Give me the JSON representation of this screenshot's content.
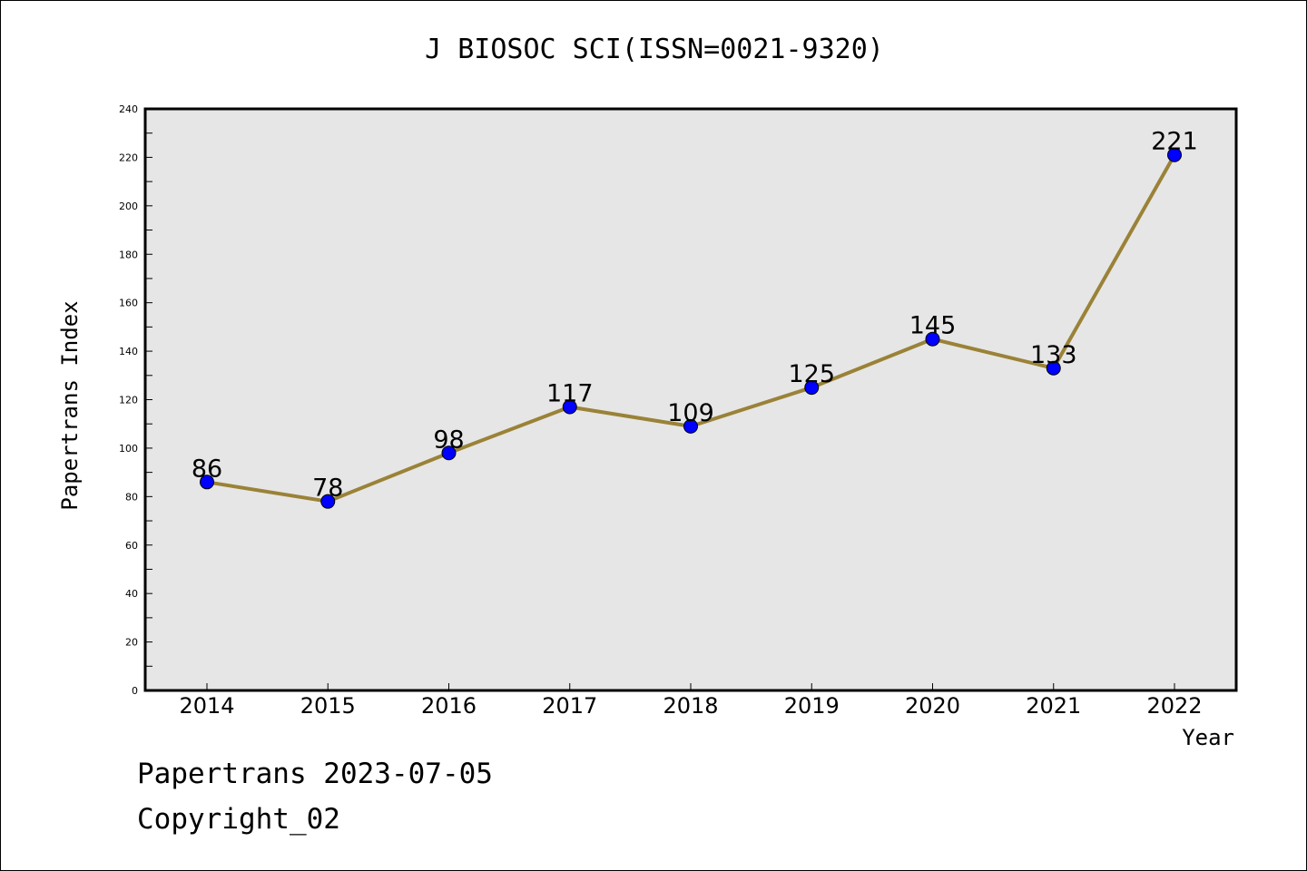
{
  "chart_data": {
    "type": "line",
    "title": "J BIOSOC SCI(ISSN=0021-9320)",
    "xlabel": "Year",
    "ylabel": "Papertrans Index",
    "categories": [
      "2014",
      "2015",
      "2016",
      "2017",
      "2018",
      "2019",
      "2020",
      "2021",
      "2022"
    ],
    "series": [
      {
        "values": [
          86,
          78,
          98,
          117,
          109,
          125,
          145,
          133,
          221
        ]
      }
    ],
    "data_labels": [
      "86",
      "78",
      "98",
      "117",
      "109",
      "125",
      "145",
      "133",
      "221"
    ],
    "ylim": [
      0,
      240
    ],
    "yticks": [
      "0",
      "20",
      "40",
      "60",
      "80",
      "100",
      "120",
      "140",
      "160",
      "180",
      "200",
      "220",
      "240"
    ],
    "grid": false,
    "legend": "none",
    "colors": {
      "line": "#9a8237",
      "marker": "#0000ff",
      "plot_background": "#e6e6e6"
    }
  },
  "footer": {
    "line1": "Papertrans 2023-07-05",
    "line2": "Copyright_02"
  }
}
